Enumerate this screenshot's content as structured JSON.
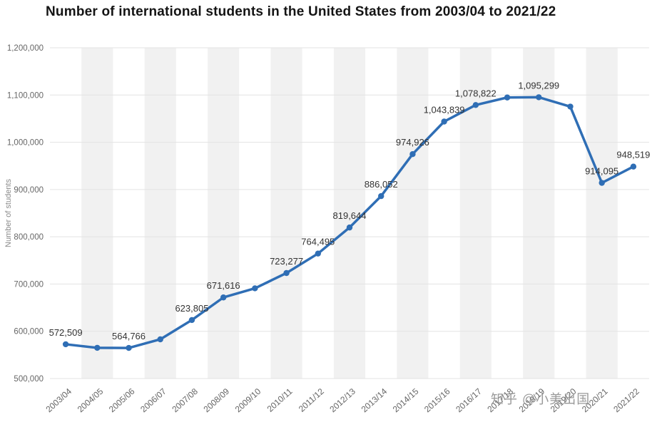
{
  "title": "Number of international students in the United States from 2003/04 to 2021/22",
  "watermark": "知乎 @小美出国",
  "chart_data": {
    "type": "line",
    "title": "Number of international students in the United States from 2003/04 to 2021/22",
    "xlabel": "",
    "ylabel": "Number of students",
    "categories": [
      "2003/04",
      "2004/05",
      "2005/06",
      "2006/07",
      "2007/08",
      "2008/09",
      "2009/10",
      "2010/11",
      "2011/12",
      "2012/13",
      "2013/14",
      "2014/15",
      "2015/16",
      "2016/17",
      "2017/18",
      "2018/19",
      "2019/20",
      "2020/21",
      "2021/22"
    ],
    "values": [
      572509,
      565039,
      564766,
      582984,
      623805,
      671616,
      690923,
      723277,
      764495,
      819644,
      886052,
      974926,
      1043839,
      1078822,
      1094792,
      1095299,
      1075496,
      914095,
      948519
    ],
    "point_labels": [
      "572,509",
      "",
      "564,766",
      "",
      "623,805",
      "671,616",
      "",
      "723,277",
      "764,495",
      "819,644",
      "886,052",
      "974,926",
      "1,043,839",
      "1,078,822",
      "",
      "1,095,299",
      "",
      "914,095",
      "948,519"
    ],
    "ylim": [
      500000,
      1200000
    ],
    "ytick_step": 100000,
    "ytick_labels": [
      "500,000",
      "600,000",
      "700,000",
      "800,000",
      "900,000",
      "1,000,000",
      "1,100,000",
      "1,200,000"
    ],
    "grid": true,
    "legend": "none",
    "line_color": "#2f6eb5",
    "label_color": "#333333",
    "tick_color": "#666666",
    "grid_color": "#e3e3e3",
    "stripe_color": "#f1f1f1"
  }
}
